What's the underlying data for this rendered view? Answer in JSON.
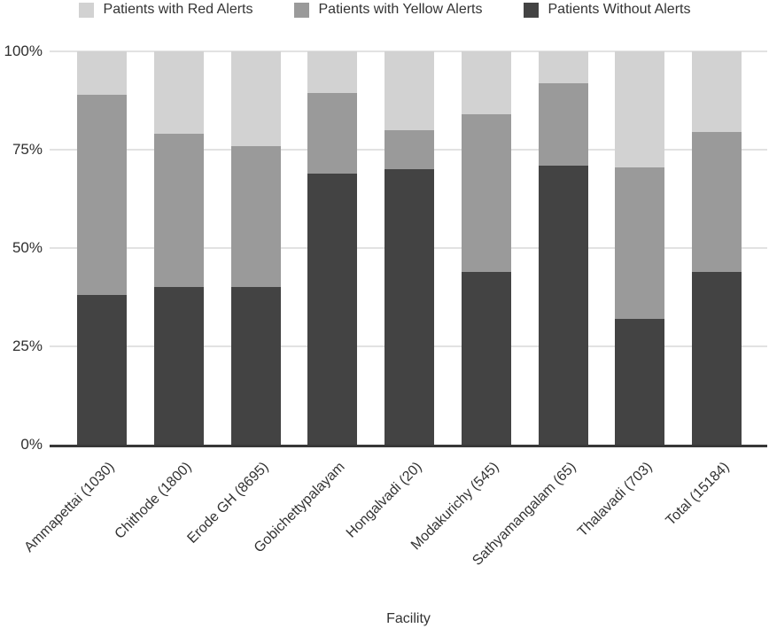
{
  "legend": [
    {
      "key": "red-alerts",
      "label": "Patients with Red Alerts",
      "color": "#d2d2d2"
    },
    {
      "key": "yellow-alerts",
      "label": "Patients with Yellow Alerts",
      "color": "#9a9a9a"
    },
    {
      "key": "without-alerts",
      "label": "Patients Without Alerts",
      "color": "#434343"
    }
  ],
  "chart_data": {
    "type": "bar",
    "variant": "stacked-100-percent",
    "title": "",
    "xlabel": "Facility",
    "ylabel": "",
    "ylim": [
      0,
      100
    ],
    "grid": true,
    "legend_position": "top",
    "yticks": [
      {
        "label": "0%",
        "value": 0
      },
      {
        "label": "25%",
        "value": 25
      },
      {
        "label": "50%",
        "value": 50
      },
      {
        "label": "75%",
        "value": 75
      },
      {
        "label": "100%",
        "value": 100
      }
    ],
    "categories": [
      "Ammapettai (1030)",
      "Chithode (1800)",
      "Erode GH (8695)",
      "Gobichettypalayam",
      "Hongalvadi (20)",
      "Modakurichy (545)",
      "Sathyamangalam (65)",
      "Thalavadi (703)",
      "Total (15184)"
    ],
    "series": [
      {
        "key": "without-alerts",
        "name": "Patients Without Alerts",
        "color": "#434343",
        "values": [
          38,
          40,
          40,
          69,
          70,
          44,
          71,
          32,
          44
        ]
      },
      {
        "key": "yellow-alerts",
        "name": "Patients with Yellow Alerts",
        "color": "#9a9a9a",
        "values": [
          51,
          39,
          36,
          20.5,
          10,
          40,
          21,
          38.5,
          35.5
        ]
      },
      {
        "key": "red-alerts",
        "name": "Patients with Red Alerts",
        "color": "#d2d2d2",
        "values": [
          11,
          21,
          24,
          10.5,
          20,
          16,
          8,
          29.5,
          20.5
        ]
      }
    ]
  },
  "colors": {
    "gridline": "#e2e2e2",
    "axis_line": "#383838",
    "text": "#333333"
  }
}
